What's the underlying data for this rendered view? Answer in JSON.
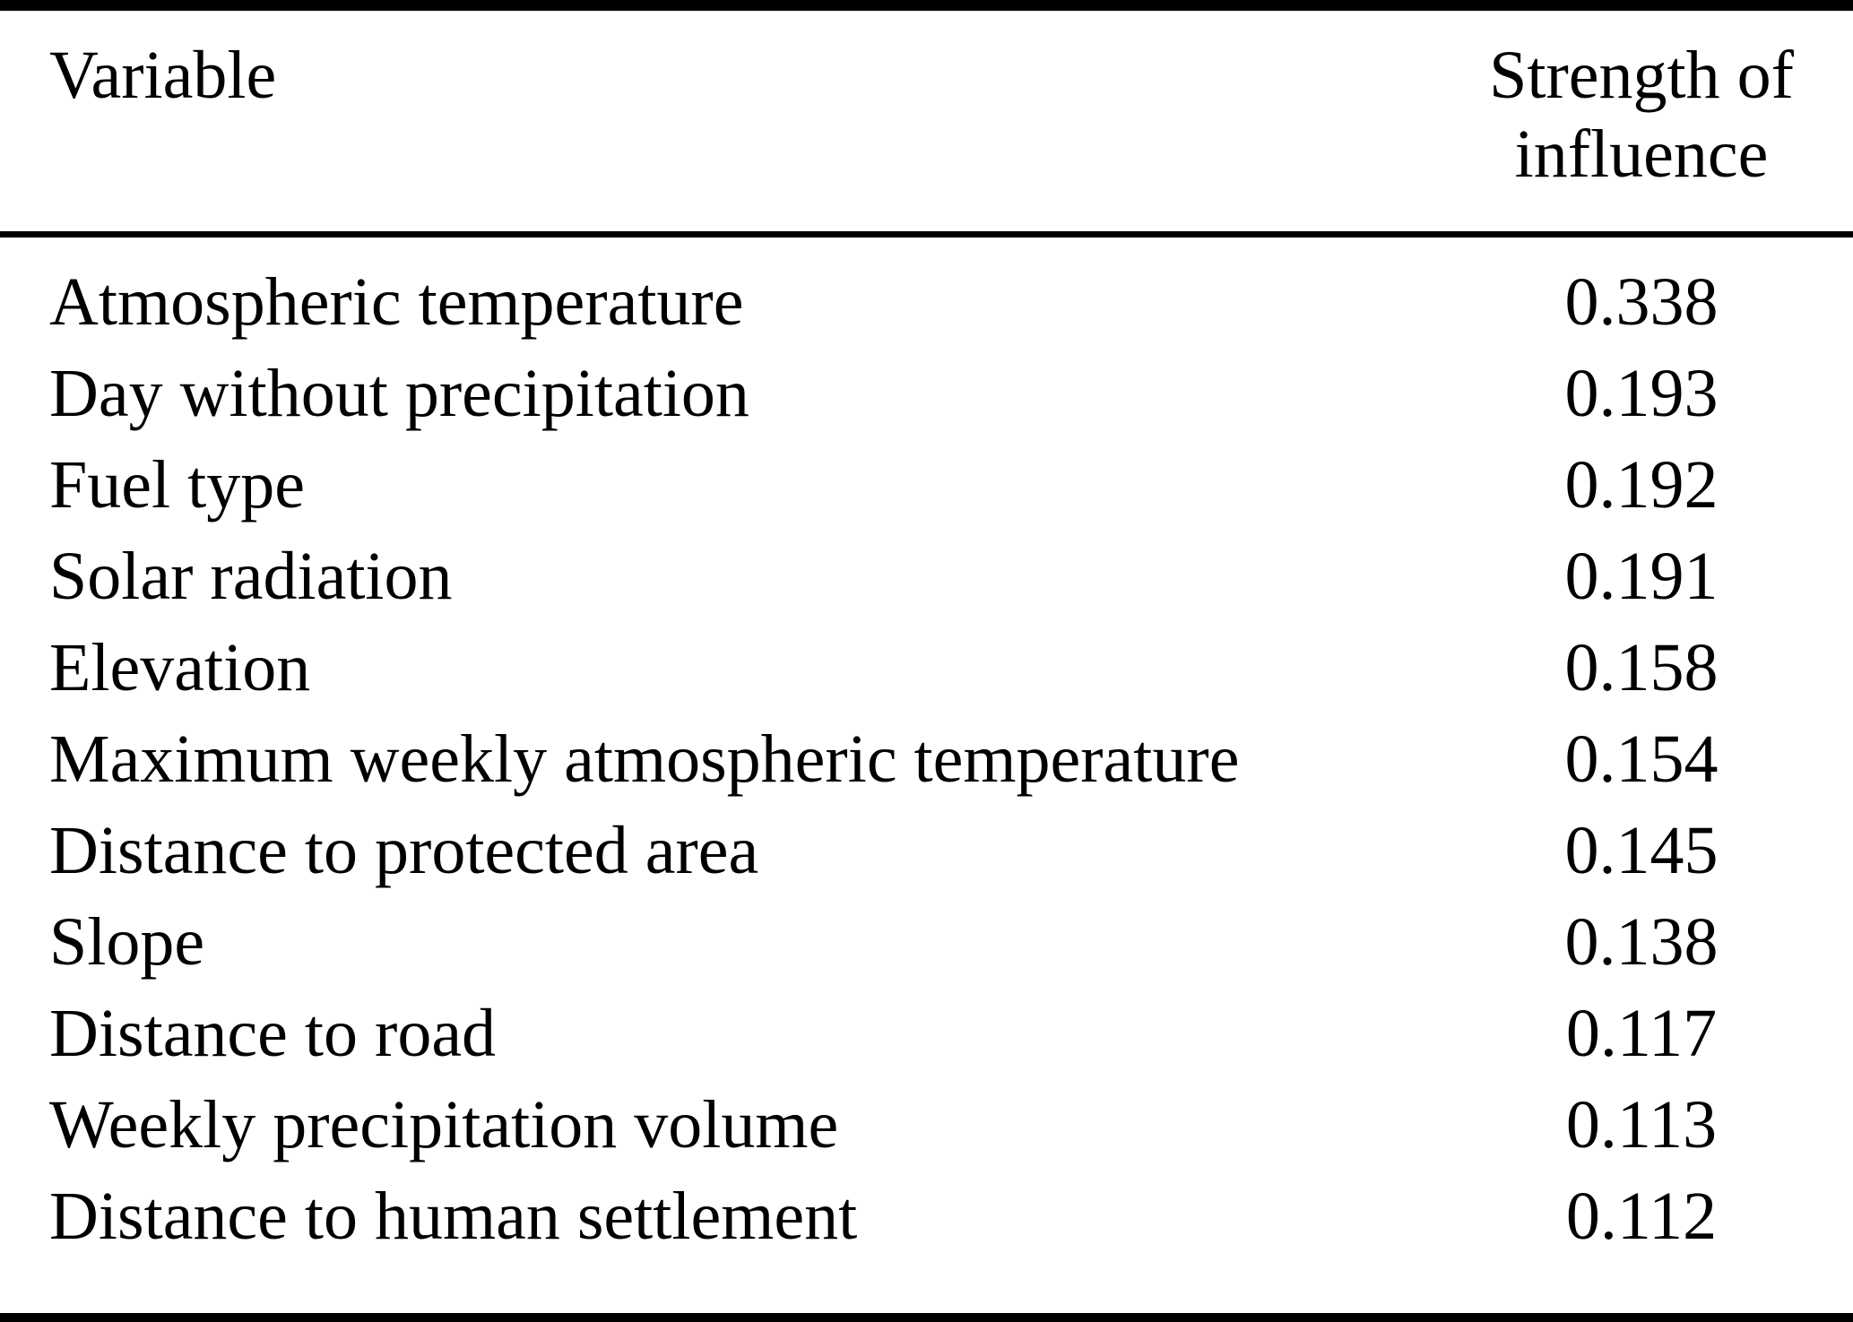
{
  "page": {
    "background_color": "#ffffff",
    "text_color": "#000000",
    "rule_color": "#000000"
  },
  "chart_data": {
    "type": "table",
    "columns": [
      "Variable",
      "Strength of influence"
    ],
    "rows": [
      [
        "Atmospheric temperature",
        "0.338"
      ],
      [
        "Day without precipitation",
        "0.193"
      ],
      [
        "Fuel type",
        "0.192"
      ],
      [
        "Solar radiation",
        "0.191"
      ],
      [
        "Elevation",
        "0.158"
      ],
      [
        "Maximum weekly atmospheric temperature",
        "0.154"
      ],
      [
        "Distance to protected area",
        "0.145"
      ],
      [
        "Slope",
        "0.138"
      ],
      [
        "Distance to road",
        "0.117"
      ],
      [
        "Weekly precipitation volume",
        "0.113"
      ],
      [
        "Distance to human settlement",
        "0.112"
      ]
    ]
  }
}
